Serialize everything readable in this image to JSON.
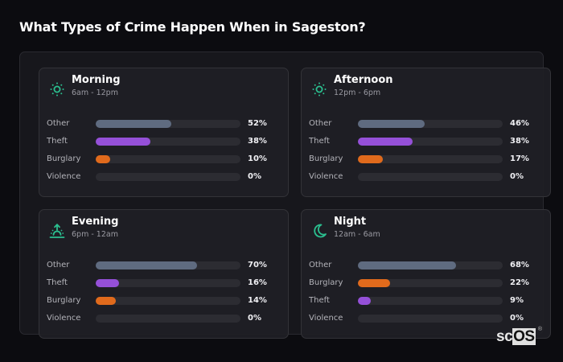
{
  "title": "What Types of Crime Happen When in Sageston?",
  "colors": {
    "Other": "#5f6b80",
    "Theft": "#9550d8",
    "Burglary": "#e06a1c",
    "Violence": "#c0392b",
    "icon": "#2bbf8f"
  },
  "cards": [
    {
      "name": "Morning",
      "range": "6am - 12pm",
      "icon": "sun-icon",
      "rows": [
        {
          "label": "Other",
          "value": 52,
          "pct": "52%"
        },
        {
          "label": "Theft",
          "value": 38,
          "pct": "38%"
        },
        {
          "label": "Burglary",
          "value": 10,
          "pct": "10%"
        },
        {
          "label": "Violence",
          "value": 0,
          "pct": "0%"
        }
      ]
    },
    {
      "name": "Afternoon",
      "range": "12pm - 6pm",
      "icon": "sun-icon",
      "rows": [
        {
          "label": "Other",
          "value": 46,
          "pct": "46%"
        },
        {
          "label": "Theft",
          "value": 38,
          "pct": "38%"
        },
        {
          "label": "Burglary",
          "value": 17,
          "pct": "17%"
        },
        {
          "label": "Violence",
          "value": 0,
          "pct": "0%"
        }
      ]
    },
    {
      "name": "Evening",
      "range": "6pm - 12am",
      "icon": "sunset-icon",
      "rows": [
        {
          "label": "Other",
          "value": 70,
          "pct": "70%"
        },
        {
          "label": "Theft",
          "value": 16,
          "pct": "16%"
        },
        {
          "label": "Burglary",
          "value": 14,
          "pct": "14%"
        },
        {
          "label": "Violence",
          "value": 0,
          "pct": "0%"
        }
      ]
    },
    {
      "name": "Night",
      "range": "12am - 6am",
      "icon": "moon-icon",
      "rows": [
        {
          "label": "Other",
          "value": 68,
          "pct": "68%"
        },
        {
          "label": "Burglary",
          "value": 22,
          "pct": "22%"
        },
        {
          "label": "Theft",
          "value": 9,
          "pct": "9%"
        },
        {
          "label": "Violence",
          "value": 0,
          "pct": "0%"
        }
      ]
    }
  ],
  "logo": {
    "sc": "sc",
    "os": "OS",
    "reg": "®"
  },
  "chart_data": {
    "type": "bar",
    "title": "What Types of Crime Happen When in Sageston?",
    "orientation": "horizontal",
    "panels": [
      {
        "title": "Morning",
        "subtitle": "6am - 12pm",
        "categories": [
          "Other",
          "Theft",
          "Burglary",
          "Violence"
        ],
        "values": [
          52,
          38,
          10,
          0
        ]
      },
      {
        "title": "Afternoon",
        "subtitle": "12pm - 6pm",
        "categories": [
          "Other",
          "Theft",
          "Burglary",
          "Violence"
        ],
        "values": [
          46,
          38,
          17,
          0
        ]
      },
      {
        "title": "Evening",
        "subtitle": "6pm - 12am",
        "categories": [
          "Other",
          "Theft",
          "Burglary",
          "Violence"
        ],
        "values": [
          70,
          16,
          14,
          0
        ]
      },
      {
        "title": "Night",
        "subtitle": "12am - 6am",
        "categories": [
          "Other",
          "Burglary",
          "Theft",
          "Violence"
        ],
        "values": [
          68,
          22,
          9,
          0
        ]
      }
    ],
    "unit": "%",
    "xlim": [
      0,
      100
    ],
    "grid": false,
    "legend": null
  }
}
